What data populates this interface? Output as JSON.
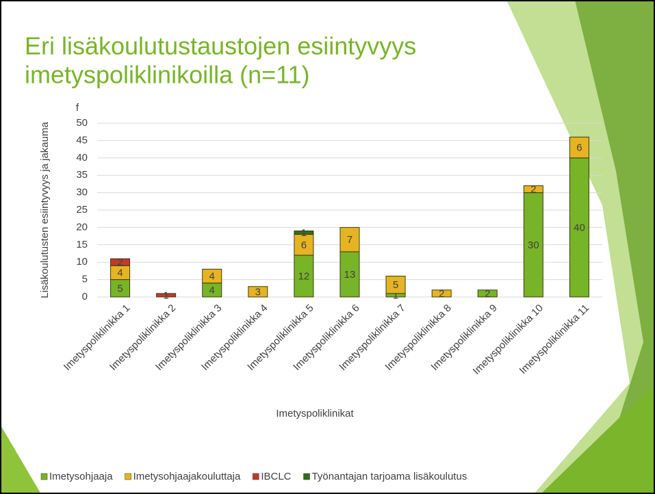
{
  "chart_data": {
    "type": "stacked_bar",
    "title": [
      "Eri lisäkoulutustaustojen esiintyvyys",
      "imetyspoliklinikoilla (n=11)"
    ],
    "y_unit_label": "f",
    "y_axis_label": "Lisäkoulutusten esiintyvyys ja jakauma",
    "x_axis_label": "Imetyspoliklinikat",
    "categories": [
      "Imetyspoliklinikka 1",
      "Imetyspoliklinikka 2",
      "Imetyspoliklinikka 3",
      "Imetyspoliklinikka 4",
      "Imetyspoliklinikka 5",
      "Imetyspoliklinikka 6",
      "Imetyspoliklinikka 7",
      "Imetyspoliklinikka 8",
      "Imetyspoliklinikka 9",
      "Imetyspoliklinikka 10",
      "Imetyspoliklinikka 11"
    ],
    "series": [
      {
        "name": "Imetysohjaaja",
        "color": "#78b428",
        "values": [
          5,
          null,
          4,
          null,
          12,
          13,
          1,
          null,
          2,
          30,
          40
        ]
      },
      {
        "name": "Imetysohjaajakouluttaja",
        "color": "#e6b422",
        "values": [
          4,
          null,
          4,
          3,
          6,
          7,
          5,
          2,
          null,
          2,
          6
        ]
      },
      {
        "name": "IBCLC",
        "color": "#c0392b",
        "values": [
          2,
          1,
          null,
          null,
          null,
          null,
          null,
          null,
          null,
          null,
          null
        ]
      },
      {
        "name": "Työnantajan tarjoama lisäkoulutus",
        "color": "#2f6e1e",
        "values": [
          null,
          null,
          null,
          null,
          1,
          null,
          null,
          null,
          null,
          null,
          null
        ]
      }
    ],
    "ylim": [
      0,
      50
    ],
    "yticks": [
      0,
      5,
      10,
      15,
      20,
      25,
      30,
      35,
      40,
      45,
      50
    ],
    "grid": true,
    "legend": "bottom"
  }
}
